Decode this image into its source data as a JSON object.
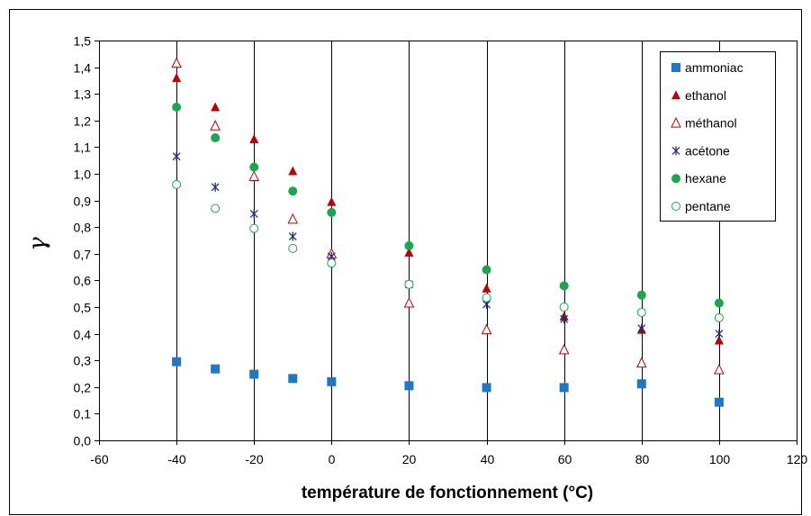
{
  "chart_data": {
    "type": "scatter",
    "title": "",
    "xlabel": "température de fonctionnement (°C)",
    "ylabel": "γ",
    "xlim": [
      -60,
      120
    ],
    "ylim": [
      0,
      1.5
    ],
    "xticks": [
      -60,
      -40,
      -20,
      0,
      20,
      40,
      60,
      80,
      100,
      120
    ],
    "yticks": [
      0.0,
      0.1,
      0.2,
      0.3,
      0.4,
      0.5,
      0.6,
      0.7,
      0.8,
      0.9,
      1.0,
      1.1,
      1.2,
      1.3,
      1.4,
      1.5
    ],
    "xtick_labels": [
      "-60",
      "-40",
      "-20",
      "0",
      "20",
      "40",
      "60",
      "80",
      "100",
      "120"
    ],
    "ytick_labels": [
      "0,0",
      "0,1",
      "0,2",
      "0,3",
      "0,4",
      "0,5",
      "0,6",
      "0,7",
      "0,8",
      "0,9",
      "1,0",
      "1,1",
      "1,2",
      "1,3",
      "1,4",
      "1,5"
    ],
    "grid": {
      "horizontal": false,
      "vertical": true
    },
    "legend_position": "top-right",
    "series": [
      {
        "name": "ammoniac",
        "marker": "square-filled",
        "color": "#1e78c8",
        "x": [
          -40,
          -30,
          -20,
          -10,
          0,
          20,
          40,
          60,
          80,
          100
        ],
        "y": [
          0.295,
          0.268,
          0.248,
          0.232,
          0.22,
          0.205,
          0.198,
          0.198,
          0.212,
          0.143
        ]
      },
      {
        "name": "ethanol",
        "marker": "triangle-filled",
        "color": "#c00000",
        "x": [
          -40,
          -30,
          -20,
          -10,
          0,
          20,
          40,
          60,
          80,
          100
        ],
        "y": [
          1.36,
          1.25,
          1.13,
          1.01,
          0.895,
          0.705,
          0.57,
          0.465,
          0.415,
          0.375
        ]
      },
      {
        "name": "méthanol",
        "marker": "triangle-open",
        "color": "#c00000",
        "x": [
          -40,
          -30,
          -20,
          -10,
          0,
          20,
          40,
          60,
          80,
          100
        ],
        "y": [
          1.415,
          1.18,
          0.99,
          0.83,
          0.7,
          0.515,
          0.415,
          0.34,
          0.29,
          0.265
        ]
      },
      {
        "name": "acétone",
        "marker": "star",
        "color": "#1f2f7a",
        "x": [
          -40,
          -30,
          -20,
          -10,
          0,
          20,
          40,
          60,
          80,
          100
        ],
        "y": [
          1.065,
          0.95,
          0.85,
          0.765,
          0.69,
          0.585,
          0.51,
          0.455,
          0.42,
          0.4
        ]
      },
      {
        "name": "hexane",
        "marker": "circle-filled",
        "color": "#1aa84c",
        "x": [
          -40,
          -30,
          -20,
          -10,
          0,
          20,
          40,
          60,
          80,
          100
        ],
        "y": [
          1.25,
          1.135,
          1.025,
          0.935,
          0.855,
          0.73,
          0.64,
          0.58,
          0.545,
          0.515
        ]
      },
      {
        "name": "pentane",
        "marker": "circle-open",
        "color": "#1aa84c",
        "x": [
          -40,
          -30,
          -20,
          -10,
          0,
          20,
          40,
          60,
          80,
          100
        ],
        "y": [
          0.96,
          0.87,
          0.795,
          0.72,
          0.665,
          0.585,
          0.535,
          0.5,
          0.48,
          0.46
        ]
      }
    ]
  }
}
